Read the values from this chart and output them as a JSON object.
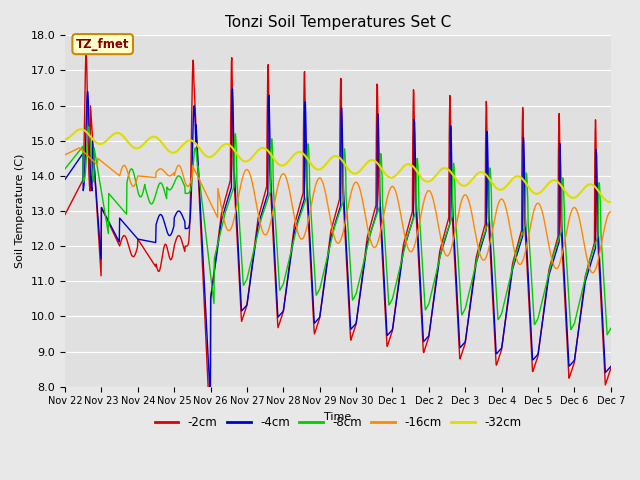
{
  "title": "Tonzi Soil Temperatures Set C",
  "xlabel": "Time",
  "ylabel": "Soil Temperature (C)",
  "ylim": [
    8.0,
    18.0
  ],
  "yticks": [
    8.0,
    9.0,
    10.0,
    11.0,
    12.0,
    13.0,
    14.0,
    15.0,
    16.0,
    17.0,
    18.0
  ],
  "series_colors": {
    "-2cm": "#dd0000",
    "-4cm": "#0000cc",
    "-8cm": "#00cc00",
    "-16cm": "#ff8800",
    "-32cm": "#dddd00"
  },
  "legend_label": "TZ_fmet",
  "legend_bg": "#ffffcc",
  "legend_border": "#cc8800",
  "x_tick_labels": [
    "Nov 22",
    "Nov 23",
    "Nov 24",
    "Nov 25",
    "Nov 26",
    "Nov 27",
    "Nov 28",
    "Nov 29",
    "Nov 30",
    "Dec 1",
    "Dec 2",
    "Dec 3",
    "Dec 4",
    "Dec 5",
    "Dec 6",
    "Dec 7"
  ],
  "fig_bg": "#e8e8e8",
  "axes_bg": "#e0e0e0"
}
